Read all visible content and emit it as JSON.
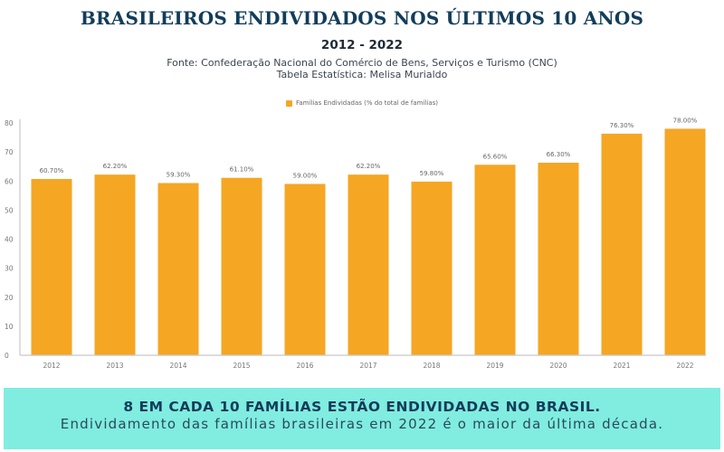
{
  "header": {
    "title": "BRASILEIROS ENDIVIDADOS NOS ÚLTIMOS 10 ANOS",
    "subtitle": "2012 - 2022",
    "source_line": "Fonte: Confederação Nacional do Comércio de Bens, Serviços e Turismo (CNC)",
    "credit_line": "Tabela Estatística: Melisa Murialdo"
  },
  "colors": {
    "bar": "#f5a623",
    "title": "#123d5a",
    "banner_bg": "#80ede0",
    "axis": "#c8c8c8"
  },
  "chart_data": {
    "type": "bar",
    "title": "BRASILEIROS ENDIVIDADOS NOS ÚLTIMOS 10 ANOS",
    "subtitle": "2012 - 2022",
    "xlabel": "",
    "ylabel": "",
    "categories": [
      "2012",
      "2013",
      "2014",
      "2015",
      "2016",
      "2017",
      "2018",
      "2019",
      "2020",
      "2021",
      "2022"
    ],
    "series": [
      {
        "name": "Famílias Endividadas (% do total de famílias)",
        "values": [
          60.7,
          62.2,
          59.3,
          61.1,
          59.0,
          62.2,
          59.8,
          65.6,
          66.3,
          76.3,
          78.0
        ],
        "labels": [
          "60.70%",
          "62.20%",
          "59.30%",
          "61.10%",
          "59.00%",
          "62.20%",
          "59.80%",
          "65.60%",
          "66.30%",
          "76.30%",
          "78.00%"
        ]
      }
    ],
    "ylim": [
      0,
      80
    ],
    "yticks": [
      0,
      10,
      20,
      30,
      40,
      50,
      60,
      70,
      80
    ],
    "grid": false,
    "legend": "top-center"
  },
  "banner": {
    "headline": "8 EM CADA 10 FAMÍLIAS ESTÃO ENDIVIDADAS NO BRASIL.",
    "text": "Endividamento das famílias brasileiras em 2022 é o maior da última década."
  }
}
